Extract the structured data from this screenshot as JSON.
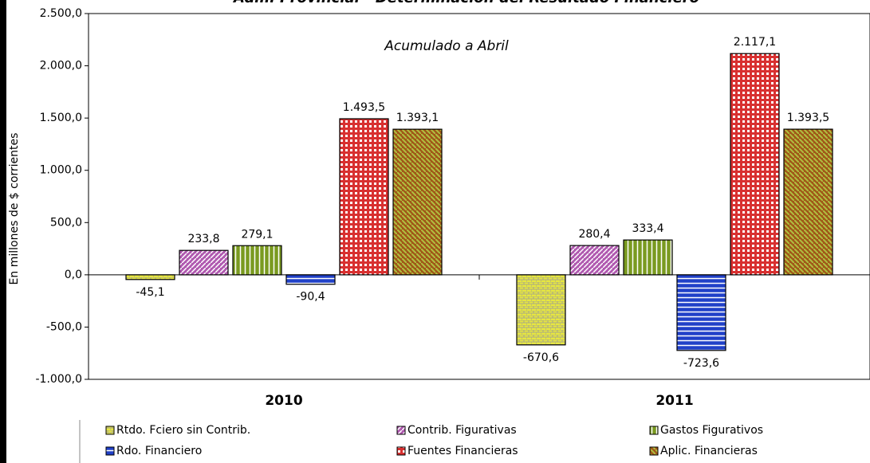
{
  "chart_data": {
    "type": "bar",
    "title": "Adm. Provincial - Determinación del Resultado Financiero",
    "annotation": "Acumulado a Abril",
    "y_label": "En millones de $ corrientes",
    "categories": [
      "2010",
      "2011"
    ],
    "ylim": [
      -1000,
      2500
    ],
    "yticks": [
      {
        "value": -1000,
        "label": "-1.000,0"
      },
      {
        "value": -500,
        "label": "-500,0"
      },
      {
        "value": 0,
        "label": "0,0"
      },
      {
        "value": 500,
        "label": "500,0"
      },
      {
        "value": 1000,
        "label": "1.000,0"
      },
      {
        "value": 1500,
        "label": "1.500,0"
      },
      {
        "value": 2000,
        "label": "2.000,0"
      },
      {
        "value": 2500,
        "label": "2.500,0"
      }
    ],
    "series": [
      {
        "name": "Rtdo. Fciero sin Contrib.",
        "color": "#e6e640",
        "values": [
          -45.1,
          -670.6
        ],
        "value_labels": [
          "-45,1",
          "-670,6"
        ]
      },
      {
        "name": "Contrib. Figurativas",
        "color": "#b05ab0",
        "values": [
          233.8,
          280.4
        ],
        "value_labels": [
          "233,8",
          "280,4"
        ]
      },
      {
        "name": "Gastos Figurativos",
        "color": "#7a9a20",
        "values": [
          279.1,
          333.4
        ],
        "value_labels": [
          "279,1",
          "333,4"
        ]
      },
      {
        "name": "Rdo. Financiero",
        "color": "#2040c8",
        "values": [
          -90.4,
          -723.6
        ],
        "value_labels": [
          "-90,4",
          "-723,6"
        ]
      },
      {
        "name": "Fuentes Financieras",
        "color": "#d83030",
        "values": [
          1493.5,
          2117.1
        ],
        "value_labels": [
          "1.493,5",
          "2.117,1"
        ]
      },
      {
        "name": "Aplic. Financieras",
        "color": "#a05818",
        "values": [
          1393.1,
          1393.5
        ],
        "value_labels": [
          "1.393,1",
          "1.393,5"
        ]
      }
    ]
  }
}
